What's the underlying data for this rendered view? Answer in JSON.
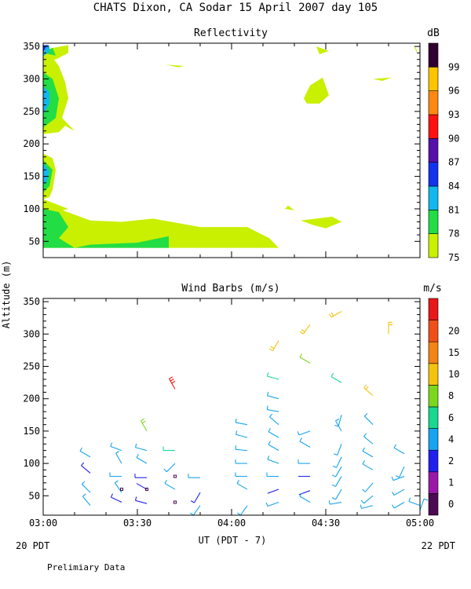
{
  "title": "CHATS Dixon, CA  Sodar  15 April 2007  day 105",
  "y_axis_label": "Altitude (m)",
  "x_axis_label": "UT  (PDT - 7)",
  "x_ticks": [
    "03:00",
    "03:30",
    "04:00",
    "04:30",
    "05:00"
  ],
  "date_left": "20 PDT",
  "date_right": "22 PDT",
  "footer_note": "Prelimiary Data",
  "chart_data": [
    {
      "type": "heatmap",
      "title": "Reflectivity",
      "colorbar_unit": "dB",
      "x_range": [
        "03:00",
        "05:00"
      ],
      "ylim": [
        25,
        355
      ],
      "y_ticks": [
        50,
        100,
        150,
        200,
        250,
        300,
        350
      ],
      "colorbar_levels": [
        75,
        78,
        81,
        84,
        87,
        90,
        93,
        96,
        99
      ],
      "colorbar_colors": [
        "#c8f000",
        "#22dd44",
        "#11b8ee",
        "#1133ee",
        "#5511aa",
        "#ff1111",
        "#ff8811",
        "#ffc400",
        "#300030"
      ],
      "regions": [
        {
          "level": 75,
          "points": [
            [
              "03:00",
              40
            ],
            [
              "03:30",
              40
            ],
            [
              "04:15",
              40
            ],
            [
              "04:12",
              55
            ],
            [
              "04:05",
              72
            ],
            [
              "03:50",
              72
            ],
            [
              "03:35",
              85
            ],
            [
              "03:25",
              80
            ],
            [
              "03:15",
              82
            ],
            [
              "03:05",
              100
            ],
            [
              "03:00",
              110
            ]
          ]
        },
        {
          "level": 75,
          "points": [
            [
              "03:00",
              115
            ],
            [
              "03:08",
              100
            ],
            [
              "03:00",
              90
            ]
          ]
        },
        {
          "level": 75,
          "points": [
            [
              "03:00",
              185
            ],
            [
              "03:03",
              178
            ],
            [
              "03:04",
              160
            ],
            [
              "03:03",
              130
            ],
            [
              "03:02",
              118
            ],
            [
              "03:00",
              115
            ]
          ]
        },
        {
          "level": 75,
          "points": [
            [
              "03:00",
              215
            ],
            [
              "03:05",
              218
            ],
            [
              "03:07",
              228
            ],
            [
              "03:10",
              220
            ],
            [
              "03:06",
              240
            ],
            [
              "03:08",
              270
            ],
            [
              "03:07",
              295
            ],
            [
              "03:05",
              320
            ],
            [
              "03:03",
              333
            ],
            [
              "03:00",
              330
            ]
          ]
        },
        {
          "level": 75,
          "points": [
            [
              "03:00",
              345
            ],
            [
              "03:08",
              352
            ],
            [
              "03:08",
              340
            ],
            [
              "03:04",
              330
            ],
            [
              "03:00",
              330
            ]
          ]
        },
        {
          "level": 75,
          "points": [
            [
              "03:39",
              322
            ],
            [
              "03:45",
              320
            ],
            [
              "03:43",
              318
            ]
          ]
        },
        {
          "level": 75,
          "points": [
            [
              "04:27",
              350
            ],
            [
              "04:31",
              343
            ],
            [
              "04:28",
              338
            ]
          ]
        },
        {
          "level": 75,
          "points": [
            [
              "04:25",
              290
            ],
            [
              "04:29",
              302
            ],
            [
              "04:31",
              275
            ],
            [
              "04:28",
              262
            ],
            [
              "04:24",
              262
            ],
            [
              "04:23",
              270
            ]
          ]
        },
        {
          "level": 75,
          "points": [
            [
              "04:45",
              300
            ],
            [
              "04:51",
              302
            ],
            [
              "04:48",
              297
            ]
          ]
        },
        {
          "level": 75,
          "points": [
            [
              "04:58",
              352
            ],
            [
              "04:59",
              345
            ],
            [
              "04:59",
              340
            ]
          ]
        },
        {
          "level": 75,
          "points": [
            [
              "04:18",
              105
            ],
            [
              "04:20",
              98
            ],
            [
              "04:17",
              100
            ]
          ]
        },
        {
          "level": 75,
          "points": [
            [
              "04:22",
              82
            ],
            [
              "04:32",
              88
            ],
            [
              "04:35",
              80
            ],
            [
              "04:30",
              70
            ],
            [
              "04:26",
              75
            ]
          ]
        },
        {
          "level": 78,
          "points": [
            [
              "03:00",
              40
            ],
            [
              "03:40",
              40
            ],
            [
              "03:40",
              58
            ],
            [
              "03:30",
              48
            ],
            [
              "03:15",
              45
            ],
            [
              "03:10",
              40
            ],
            [
              "03:05",
              55
            ],
            [
              "03:08",
              72
            ],
            [
              "03:05",
              95
            ],
            [
              "03:00",
              100
            ]
          ]
        },
        {
          "level": 78,
          "points": [
            [
              "03:00",
              175
            ],
            [
              "03:03",
              160
            ],
            [
              "03:02",
              135
            ],
            [
              "03:00",
              125
            ]
          ]
        },
        {
          "level": 78,
          "points": [
            [
              "03:00",
              225
            ],
            [
              "03:04",
              240
            ],
            [
              "03:05",
              270
            ],
            [
              "03:03",
              300
            ],
            [
              "03:00",
              310
            ]
          ]
        },
        {
          "level": 78,
          "points": [
            [
              "03:00",
              340
            ],
            [
              "03:03",
              348
            ],
            [
              "03:04",
              336
            ]
          ]
        },
        {
          "level": 81,
          "points": [
            [
              "03:00",
              170
            ],
            [
              "03:02",
              158
            ],
            [
              "03:01",
              140
            ],
            [
              "03:00",
              138
            ]
          ]
        },
        {
          "level": 81,
          "points": [
            [
              "03:00",
              245
            ],
            [
              "03:02",
              262
            ],
            [
              "03:02",
              280
            ],
            [
              "03:00",
              288
            ]
          ]
        },
        {
          "level": 81,
          "points": [
            [
              "03:00",
              335
            ],
            [
              "03:02",
              342
            ],
            [
              "03:02",
              350
            ],
            [
              "03:01",
              353
            ]
          ]
        },
        {
          "level": 84,
          "points": [
            [
              "03:00",
              340
            ],
            [
              "03:01",
              350
            ],
            [
              "03:02",
              352
            ],
            [
              "03:00",
              352
            ]
          ]
        }
      ]
    },
    {
      "type": "scatter",
      "title": "Wind Barbs (m/s)",
      "colorbar_unit": "m/s",
      "x_range": [
        "03:00",
        "05:00"
      ],
      "ylim": [
        20,
        355
      ],
      "y_ticks": [
        50,
        100,
        150,
        200,
        250,
        300,
        350
      ],
      "colorbar_tick_values": [
        0,
        1,
        2,
        4,
        6,
        8,
        10,
        15,
        20
      ],
      "colorbar_colors": [
        "#4c0a50",
        "#9a18a8",
        "#2020ee",
        "#16a4f0",
        "#18d890",
        "#7cd81c",
        "#f4c40c",
        "#f48414",
        "#f05018",
        "#e81818"
      ],
      "barbs": [
        {
          "t": "03:15",
          "h": 110,
          "spd": 4.5,
          "dir": 300
        },
        {
          "t": "03:15",
          "h": 85,
          "spd": 2.5,
          "dir": 310
        },
        {
          "t": "03:15",
          "h": 55,
          "spd": 3,
          "dir": 315
        },
        {
          "t": "03:15",
          "h": 35,
          "spd": 3,
          "dir": 320
        },
        {
          "t": "03:25",
          "h": 120,
          "spd": 4,
          "dir": 290
        },
        {
          "t": "03:25",
          "h": 100,
          "spd": 4,
          "dir": 330
        },
        {
          "t": "03:25",
          "h": 80,
          "spd": 4,
          "dir": 270
        },
        {
          "t": "03:25",
          "h": 55,
          "spd": 3,
          "dir": 325
        },
        {
          "t": "03:25",
          "h": 60,
          "spd": 0.5,
          "dir": 0
        },
        {
          "t": "03:25",
          "h": 40,
          "spd": 2.5,
          "dir": 295
        },
        {
          "t": "03:33",
          "h": 150,
          "spd": 8,
          "dir": 330
        },
        {
          "t": "03:33",
          "h": 120,
          "spd": 4,
          "dir": 285
        },
        {
          "t": "03:33",
          "h": 100,
          "spd": 3.5,
          "dir": 300
        },
        {
          "t": "03:33",
          "h": 78,
          "spd": 2.5,
          "dir": 270
        },
        {
          "t": "03:33",
          "h": 60,
          "spd": 1.5,
          "dir": 300
        },
        {
          "t": "03:33",
          "h": 60,
          "spd": 0.5,
          "dir": 0
        },
        {
          "t": "03:33",
          "h": 38,
          "spd": 2.5,
          "dir": 285
        },
        {
          "t": "03:42",
          "h": 215,
          "spd": 22,
          "dir": 330
        },
        {
          "t": "03:42",
          "h": 120,
          "spd": 5,
          "dir": 270
        },
        {
          "t": "03:42",
          "h": 100,
          "spd": 3,
          "dir": 225
        },
        {
          "t": "03:42",
          "h": 80,
          "spd": 0.5,
          "dir": 0
        },
        {
          "t": "03:42",
          "h": 60,
          "spd": 3,
          "dir": 300
        },
        {
          "t": "03:42",
          "h": 40,
          "spd": 0.5,
          "dir": 0
        },
        {
          "t": "03:50",
          "h": 78,
          "spd": 4,
          "dir": 270
        },
        {
          "t": "03:50",
          "h": 55,
          "spd": 2.5,
          "dir": 210
        },
        {
          "t": "03:50",
          "h": 35,
          "spd": 3,
          "dir": 215
        },
        {
          "t": "04:05",
          "h": 160,
          "spd": 4,
          "dir": 280
        },
        {
          "t": "04:05",
          "h": 140,
          "spd": 4,
          "dir": 285
        },
        {
          "t": "04:05",
          "h": 120,
          "spd": 4,
          "dir": 275
        },
        {
          "t": "04:05",
          "h": 100,
          "spd": 4,
          "dir": 270
        },
        {
          "t": "04:05",
          "h": 80,
          "spd": 3,
          "dir": 270
        },
        {
          "t": "04:05",
          "h": 60,
          "spd": 3,
          "dir": 300
        },
        {
          "t": "04:05",
          "h": 35,
          "spd": 3,
          "dir": 215
        },
        {
          "t": "04:15",
          "h": 290,
          "spd": 12,
          "dir": 210
        },
        {
          "t": "04:15",
          "h": 230,
          "spd": 5,
          "dir": 285
        },
        {
          "t": "04:15",
          "h": 200,
          "spd": 4,
          "dir": 285
        },
        {
          "t": "04:15",
          "h": 180,
          "spd": 4,
          "dir": 280
        },
        {
          "t": "04:15",
          "h": 160,
          "spd": 4,
          "dir": 310
        },
        {
          "t": "04:15",
          "h": 140,
          "spd": 4,
          "dir": 300
        },
        {
          "t": "04:15",
          "h": 120,
          "spd": 4,
          "dir": 300
        },
        {
          "t": "04:15",
          "h": 100,
          "spd": 4,
          "dir": 290
        },
        {
          "t": "04:15",
          "h": 80,
          "spd": 4,
          "dir": 270
        },
        {
          "t": "04:15",
          "h": 60,
          "spd": 1.5,
          "dir": 250
        },
        {
          "t": "04:15",
          "h": 40,
          "spd": 3,
          "dir": 250
        },
        {
          "t": "04:25",
          "h": 315,
          "spd": 12,
          "dir": 215
        },
        {
          "t": "04:25",
          "h": 255,
          "spd": 7,
          "dir": 300
        },
        {
          "t": "04:25",
          "h": 150,
          "spd": 4,
          "dir": 250
        },
        {
          "t": "04:25",
          "h": 125,
          "spd": 3,
          "dir": 300
        },
        {
          "t": "04:25",
          "h": 100,
          "spd": 3,
          "dir": 270
        },
        {
          "t": "04:25",
          "h": 80,
          "spd": 1.5,
          "dir": 270
        },
        {
          "t": "04:25",
          "h": 58,
          "spd": 1.5,
          "dir": 250
        },
        {
          "t": "04:25",
          "h": 40,
          "spd": 3,
          "dir": 300
        },
        {
          "t": "04:35",
          "h": 335,
          "spd": 11,
          "dir": 240
        },
        {
          "t": "04:35",
          "h": 225,
          "spd": 6.5,
          "dir": 300
        },
        {
          "t": "04:35",
          "h": 175,
          "spd": 4,
          "dir": 195
        },
        {
          "t": "04:35",
          "h": 150,
          "spd": 3.5,
          "dir": 330
        },
        {
          "t": "04:35",
          "h": 130,
          "spd": 3,
          "dir": 200
        },
        {
          "t": "04:35",
          "h": 110,
          "spd": 3,
          "dir": 205
        },
        {
          "t": "04:35",
          "h": 95,
          "spd": 3,
          "dir": 210
        },
        {
          "t": "04:35",
          "h": 80,
          "spd": 3,
          "dir": 210
        },
        {
          "t": "04:35",
          "h": 60,
          "spd": 3,
          "dir": 210
        },
        {
          "t": "04:35",
          "h": 40,
          "spd": 3,
          "dir": 260
        },
        {
          "t": "04:45",
          "h": 205,
          "spd": 9,
          "dir": 310
        },
        {
          "t": "04:45",
          "h": 160,
          "spd": 4,
          "dir": 315
        },
        {
          "t": "04:45",
          "h": 130,
          "spd": 3.5,
          "dir": 310
        },
        {
          "t": "04:45",
          "h": 110,
          "spd": 3,
          "dir": 300
        },
        {
          "t": "04:45",
          "h": 90,
          "spd": 3,
          "dir": 300
        },
        {
          "t": "04:45",
          "h": 70,
          "spd": 3,
          "dir": 220
        },
        {
          "t": "04:45",
          "h": 50,
          "spd": 3,
          "dir": 230
        },
        {
          "t": "04:45",
          "h": 35,
          "spd": 3,
          "dir": 255
        },
        {
          "t": "04:50",
          "h": 300,
          "spd": 12,
          "dir": 0
        },
        {
          "t": "04:55",
          "h": 115,
          "spd": 3.5,
          "dir": 300
        },
        {
          "t": "04:55",
          "h": 95,
          "spd": 3,
          "dir": 205
        },
        {
          "t": "04:55",
          "h": 80,
          "spd": 3,
          "dir": 250
        },
        {
          "t": "04:55",
          "h": 60,
          "spd": 3,
          "dir": 240
        },
        {
          "t": "04:55",
          "h": 40,
          "spd": 3,
          "dir": 240
        },
        {
          "t": "05:00",
          "h": 35,
          "spd": 3,
          "dir": 290
        },
        {
          "t": "05:00",
          "h": 28,
          "spd": 4,
          "dir": 20
        }
      ]
    }
  ]
}
